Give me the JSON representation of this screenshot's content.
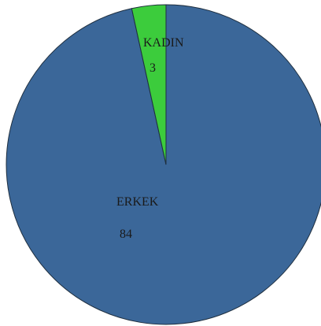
{
  "chart_data": {
    "type": "pie",
    "title": "",
    "slices": [
      {
        "label": "ERKEK",
        "value": 84,
        "color": "#3b6799"
      },
      {
        "label": "KADIN",
        "value": 3,
        "color": "#3ccc3c"
      }
    ],
    "start_angle": "12 o'clock",
    "direction": "counter-clockwise",
    "legend": "none",
    "labels": "inside slices"
  }
}
